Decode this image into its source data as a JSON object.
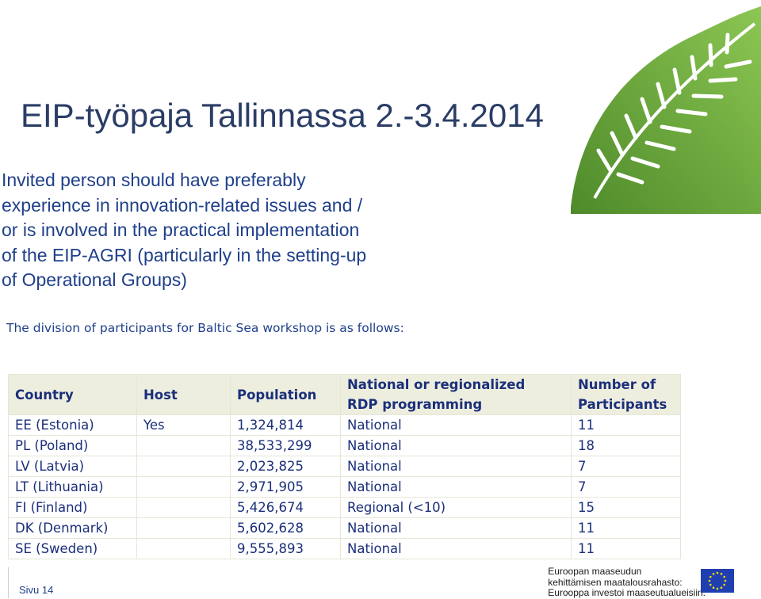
{
  "slide": {
    "title": "EIP-työpaja Tallinnassa 2.-3.4.2014",
    "body": "Invited person should have preferably experience in innovation-related issues and / or is involved in the practical implementation of the EIP-AGRI (particularly in the setting-up of Operational Groups)",
    "subtext": "The division of participants for Baltic Sea workshop is as follows:"
  },
  "table": {
    "headers": {
      "country": "Country",
      "host": "Host",
      "population": "Population",
      "programming_line1": "National or regionalized",
      "programming_line2": "RDP programming",
      "participants_line1": "Number of",
      "participants_line2": "Participants"
    },
    "rows": [
      {
        "country": "EE (Estonia)",
        "host": "Yes",
        "population": "1,324,814",
        "programming": "National",
        "participants": "11"
      },
      {
        "country": "PL (Poland)",
        "host": "",
        "population": "38,533,299",
        "programming": "National",
        "participants": "18"
      },
      {
        "country": "LV (Latvia)",
        "host": "",
        "population": "2,023,825",
        "programming": "National",
        "participants": "7"
      },
      {
        "country": "LT (Lithuania)",
        "host": "",
        "population": "2,971,905",
        "programming": "National",
        "participants": "7"
      },
      {
        "country": "FI (Finland)",
        "host": "",
        "population": "5,426,674",
        "programming": "Regional (<10)",
        "participants": "15"
      },
      {
        "country": "DK (Denmark)",
        "host": "",
        "population": "5,602,628",
        "programming": "National",
        "participants": "11"
      },
      {
        "country": "SE (Sweden)",
        "host": "",
        "population": "9,555,893",
        "programming": "National",
        "participants": "11"
      }
    ]
  },
  "footer": {
    "page": "Sivu 14",
    "eu_line1": "Euroopan maaseudun",
    "eu_line2": "kehittämisen maatalousrahasto:",
    "eu_line3": "Eurooppa investoi maaseutualueisiin."
  },
  "decor": {
    "leaf_color": "#7ab542",
    "leaf_dark": "#4e8a2a",
    "eu_flag_blue": "#1f3fb0",
    "eu_star_yellow": "#ffdd00"
  }
}
